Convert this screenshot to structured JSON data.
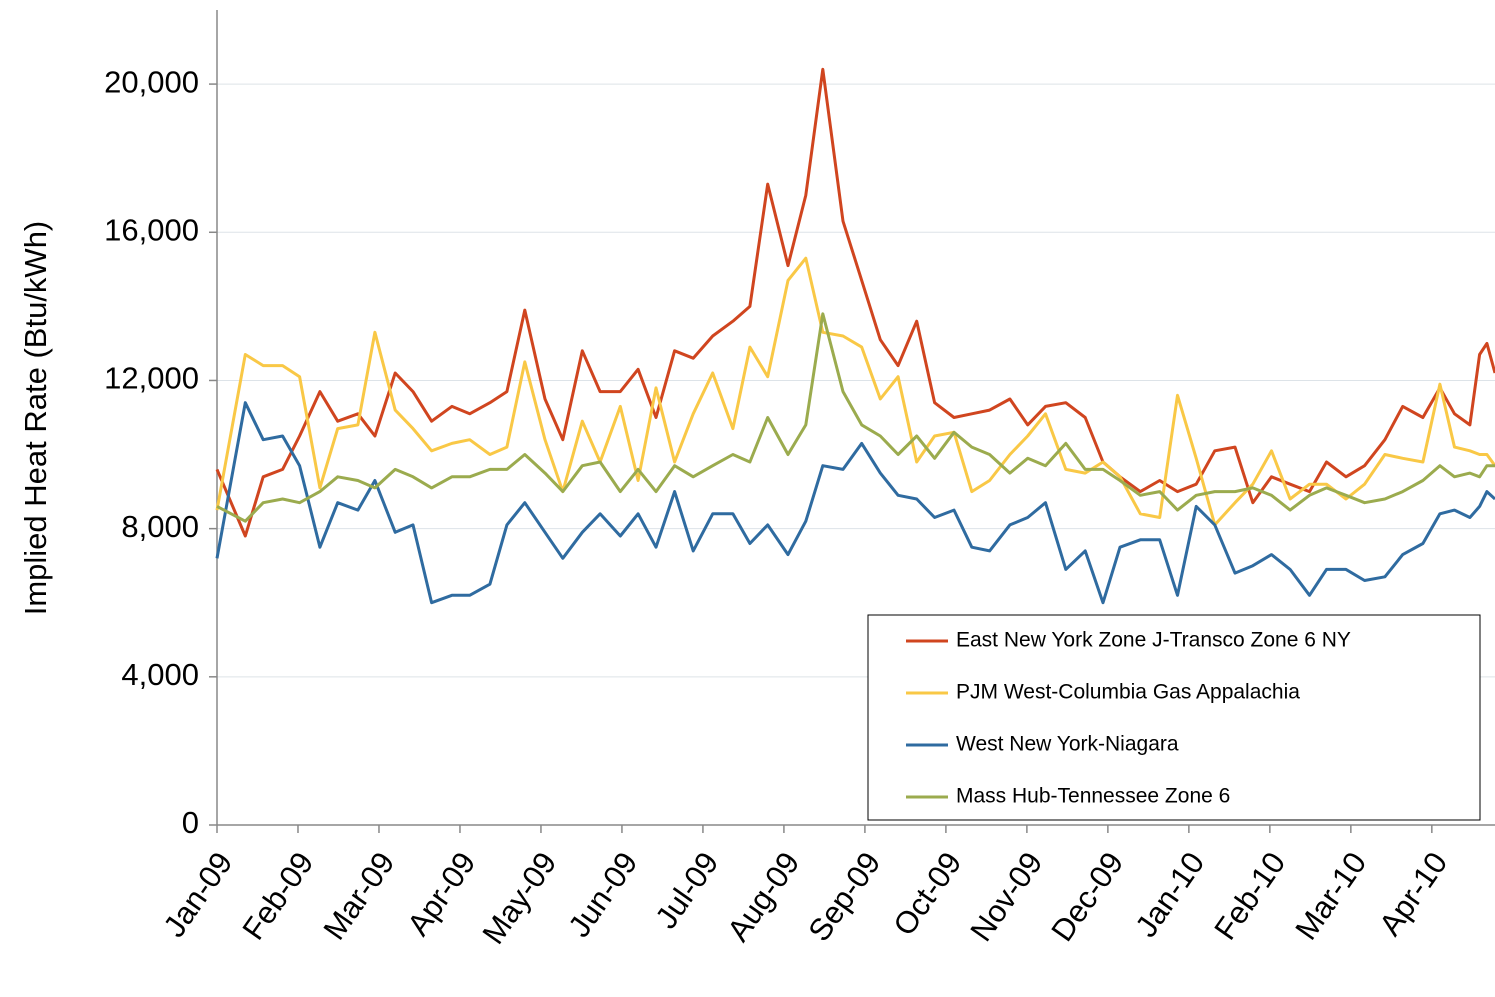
{
  "chart_data": {
    "type": "line",
    "y_label": "Implied Heat Rate (Btu/kWh)",
    "x": [
      0,
      0.35,
      0.57,
      0.81,
      1.02,
      1.27,
      1.49,
      1.74,
      1.95,
      2.2,
      2.42,
      2.65,
      2.9,
      3.12,
      3.37,
      3.58,
      3.8,
      4.05,
      4.27,
      4.51,
      4.73,
      4.98,
      5.2,
      5.42,
      5.65,
      5.88,
      6.12,
      6.37,
      6.58,
      6.8,
      7.05,
      7.27,
      7.48,
      7.73,
      7.96,
      8.19,
      8.41,
      8.64,
      8.86,
      9.1,
      9.32,
      9.54,
      9.79,
      10.01,
      10.23,
      10.48,
      10.72,
      10.94,
      11.15,
      11.4,
      11.64,
      11.86,
      12.09,
      12.32,
      12.57,
      12.79,
      13.02,
      13.25,
      13.49,
      13.7,
      13.94,
      14.17,
      14.42,
      14.64,
      14.89,
      15.1,
      15.28,
      15.47,
      15.59,
      15.68,
      15.78
    ],
    "series": [
      {
        "name": "East New York Zone J-Transco Zone 6 NY",
        "color": "#d0451f",
        "values": [
          9600,
          7800,
          9400,
          9600,
          10500,
          11700,
          10900,
          11100,
          10500,
          12200,
          11700,
          10900,
          11300,
          11100,
          11400,
          11700,
          13900,
          11500,
          10400,
          12800,
          11700,
          11700,
          12300,
          11000,
          12800,
          12600,
          13200,
          13600,
          14000,
          17300,
          15100,
          17000,
          20400,
          16300,
          14700,
          13100,
          12400,
          13600,
          11400,
          11000,
          11100,
          11200,
          11500,
          10800,
          11300,
          11400,
          11000,
          9800,
          9400,
          9000,
          9300,
          9000,
          9200,
          10100,
          10200,
          8700,
          9400,
          9200,
          9000,
          9800,
          9400,
          9700,
          10400,
          11300,
          11000,
          11800,
          11100,
          10800,
          12700,
          13000,
          12200
        ]
      },
      {
        "name": "PJM West-Columbia Gas Appalachia",
        "color": "#f9c846",
        "values": [
          8500,
          12700,
          12400,
          12400,
          12100,
          9100,
          10700,
          10800,
          13300,
          11200,
          10700,
          10100,
          10300,
          10400,
          10000,
          10200,
          12500,
          10400,
          9000,
          10900,
          9800,
          11300,
          9300,
          11800,
          9800,
          11100,
          12200,
          10700,
          12900,
          12100,
          14700,
          15300,
          13300,
          13200,
          12900,
          11500,
          12100,
          9800,
          10500,
          10600,
          9000,
          9300,
          10000,
          10500,
          11100,
          9600,
          9500,
          9800,
          9400,
          8400,
          8300,
          11600,
          9900,
          8100,
          8700,
          9200,
          10100,
          8800,
          9200,
          9200,
          8800,
          9200,
          10000,
          9900,
          9800,
          11900,
          10200,
          10100,
          10000,
          10000,
          9700
        ]
      },
      {
        "name": "West New York-Niagara",
        "color": "#2f6ba0",
        "values": [
          7200,
          11400,
          10400,
          10500,
          9700,
          7500,
          8700,
          8500,
          9300,
          7900,
          8100,
          6000,
          6200,
          6200,
          6500,
          8100,
          8700,
          7900,
          7200,
          7900,
          8400,
          7800,
          8400,
          7500,
          9000,
          7400,
          8400,
          8400,
          7600,
          8100,
          7300,
          8200,
          9700,
          9600,
          10300,
          9500,
          8900,
          8800,
          8300,
          8500,
          7500,
          7400,
          8100,
          8300,
          8700,
          6900,
          7400,
          6000,
          7500,
          7700,
          7700,
          6200,
          8600,
          8100,
          6800,
          7000,
          7300,
          6900,
          6200,
          6900,
          6900,
          6600,
          6700,
          7300,
          7600,
          8400,
          8500,
          8300,
          8600,
          9000,
          8800
        ]
      },
      {
        "name": "Mass Hub-Tennessee Zone 6",
        "color": "#9bab4e",
        "values": [
          8600,
          8200,
          8700,
          8800,
          8700,
          9000,
          9400,
          9300,
          9100,
          9600,
          9400,
          9100,
          9400,
          9400,
          9600,
          9600,
          10000,
          9500,
          9000,
          9700,
          9800,
          9000,
          9600,
          9000,
          9700,
          9400,
          9700,
          10000,
          9800,
          11000,
          10000,
          10800,
          13800,
          11700,
          10800,
          10500,
          10000,
          10500,
          9900,
          10600,
          10200,
          10000,
          9500,
          9900,
          9700,
          10300,
          9600,
          9600,
          9300,
          8900,
          9000,
          8500,
          8900,
          9000,
          9000,
          9100,
          8900,
          8500,
          8900,
          9100,
          8900,
          8700,
          8800,
          9000,
          9300,
          9700,
          9400,
          9500,
          9400,
          9700,
          9700
        ]
      }
    ],
    "xlim": [
      0,
      15.78
    ],
    "xticks": [
      {
        "value": 0,
        "label": "Jan-09"
      },
      {
        "value": 1,
        "label": "Feb-09"
      },
      {
        "value": 2,
        "label": "Mar-09"
      },
      {
        "value": 3,
        "label": "Apr-09"
      },
      {
        "value": 4,
        "label": "May-09"
      },
      {
        "value": 5,
        "label": "Jun-09"
      },
      {
        "value": 6,
        "label": "Jul-09"
      },
      {
        "value": 7,
        "label": "Aug-09"
      },
      {
        "value": 8,
        "label": "Sep-09"
      },
      {
        "value": 9,
        "label": "Oct-09"
      },
      {
        "value": 10,
        "label": "Nov-09"
      },
      {
        "value": 11,
        "label": "Dec-09"
      },
      {
        "value": 12,
        "label": "Jan-10"
      },
      {
        "value": 13,
        "label": "Feb-10"
      },
      {
        "value": 14,
        "label": "Mar-10"
      },
      {
        "value": 15,
        "label": "Apr-10"
      }
    ],
    "ylim": [
      0,
      22000
    ],
    "yticks": [
      0,
      {
        "value": 4000,
        "label": "4,000"
      },
      {
        "value": 8000,
        "label": "8,000"
      },
      {
        "value": 12000,
        "label": "12,000"
      },
      {
        "value": 16000,
        "label": "16,000"
      },
      {
        "value": 20000,
        "label": "20,000"
      }
    ],
    "grid": true,
    "legend": "lower right"
  }
}
